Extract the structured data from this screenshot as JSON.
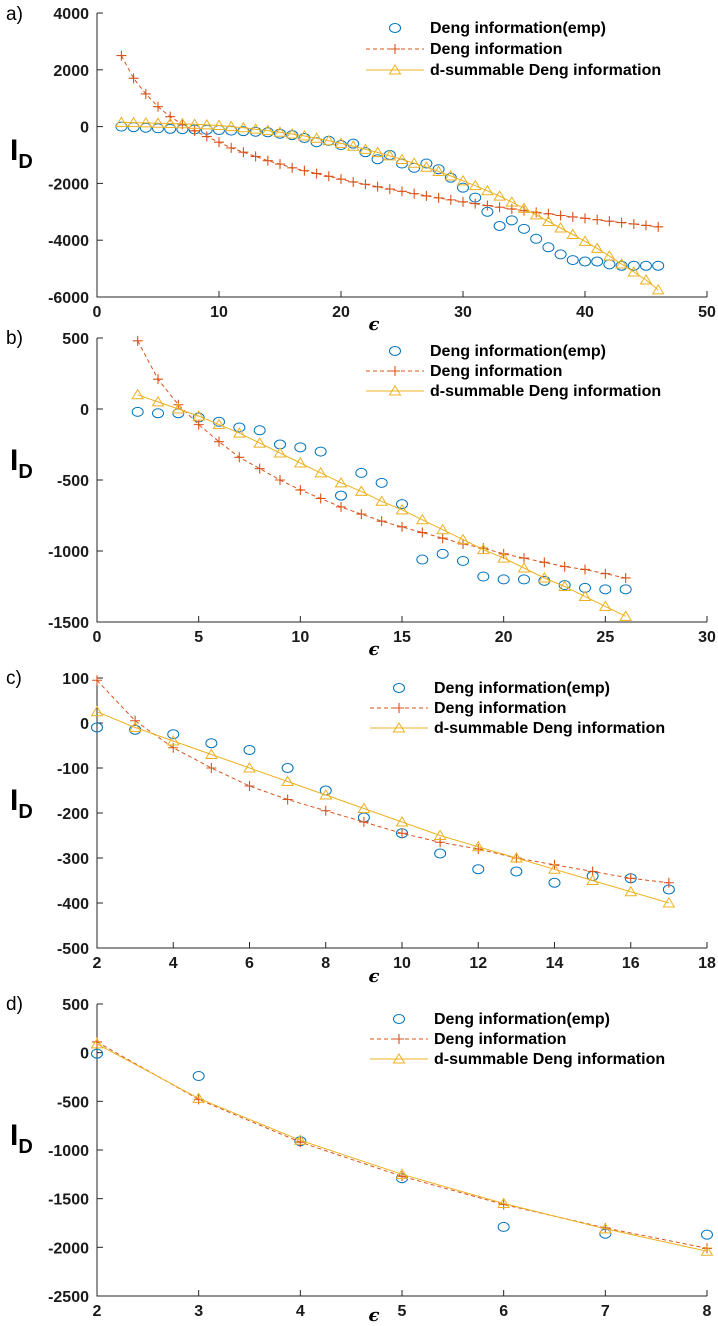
{
  "colors": {
    "emp": "#0072BD",
    "deng": "#D95319",
    "dsum": "#EDB120",
    "axis": "#262626"
  },
  "chart_data": [
    {
      "type": "scatter",
      "panel_label": "a)",
      "ylabel": "I",
      "ylabel_sub": "D",
      "xlabel": "ϵ",
      "xlim": [
        0,
        50
      ],
      "ylim": [
        -6000,
        4000
      ],
      "xticks": [
        0,
        10,
        20,
        30,
        40,
        50
      ],
      "yticks": [
        -6000,
        -4000,
        -2000,
        0,
        2000,
        4000
      ],
      "legend_position": "top-right",
      "series": [
        {
          "key": "emp",
          "name": "Deng information(emp)",
          "style": "circle",
          "x": [
            2,
            3,
            4,
            5,
            6,
            7,
            8,
            9,
            10,
            11,
            12,
            13,
            14,
            15,
            16,
            17,
            18,
            19,
            20,
            21,
            22,
            23,
            24,
            25,
            26,
            27,
            28,
            29,
            30,
            31,
            32,
            33,
            34,
            35,
            36,
            37,
            38,
            39,
            40,
            41,
            42,
            43,
            44,
            45,
            46
          ],
          "y": [
            0,
            -20,
            -40,
            -60,
            -80,
            -90,
            -100,
            -110,
            -120,
            -140,
            -160,
            -180,
            -200,
            -250,
            -300,
            -400,
            -550,
            -500,
            -650,
            -600,
            -900,
            -1150,
            -1000,
            -1300,
            -1450,
            -1300,
            -1500,
            -1800,
            -2150,
            -2500,
            -3000,
            -3500,
            -3300,
            -3600,
            -3950,
            -4250,
            -4500,
            -4700,
            -4750,
            -4750,
            -4850,
            -4900,
            -4900,
            -4900,
            -4900
          ]
        },
        {
          "key": "deng",
          "name": "Deng information",
          "style": "plus-dashed",
          "x": [
            2,
            3,
            4,
            5,
            6,
            7,
            8,
            9,
            10,
            11,
            12,
            13,
            14,
            15,
            16,
            17,
            18,
            19,
            20,
            21,
            22,
            23,
            24,
            25,
            26,
            27,
            28,
            29,
            30,
            31,
            32,
            33,
            34,
            35,
            36,
            37,
            38,
            39,
            40,
            41,
            42,
            43,
            44,
            45,
            46
          ],
          "y": [
            2500,
            1700,
            1150,
            700,
            350,
            80,
            -150,
            -350,
            -550,
            -750,
            -900,
            -1050,
            -1200,
            -1320,
            -1450,
            -1550,
            -1650,
            -1750,
            -1850,
            -1950,
            -2030,
            -2120,
            -2200,
            -2280,
            -2360,
            -2440,
            -2510,
            -2580,
            -2650,
            -2710,
            -2780,
            -2840,
            -2900,
            -2960,
            -3020,
            -3070,
            -3130,
            -3180,
            -3230,
            -3280,
            -3330,
            -3380,
            -3430,
            -3480,
            -3530
          ]
        },
        {
          "key": "dsum",
          "name": "d-summable Deng information",
          "style": "triangle-solid",
          "x": [
            2,
            3,
            4,
            5,
            6,
            7,
            8,
            9,
            10,
            11,
            12,
            13,
            14,
            15,
            16,
            17,
            18,
            19,
            20,
            21,
            22,
            23,
            24,
            25,
            26,
            27,
            28,
            29,
            30,
            31,
            32,
            33,
            34,
            35,
            36,
            37,
            38,
            39,
            40,
            41,
            42,
            43,
            44,
            45,
            46
          ],
          "y": [
            150,
            140,
            130,
            120,
            110,
            100,
            80,
            60,
            40,
            0,
            -40,
            -90,
            -140,
            -200,
            -260,
            -330,
            -410,
            -500,
            -590,
            -690,
            -800,
            -910,
            -1030,
            -1160,
            -1290,
            -1430,
            -1580,
            -1740,
            -1910,
            -2080,
            -2260,
            -2450,
            -2660,
            -2880,
            -3110,
            -3340,
            -3570,
            -3800,
            -4040,
            -4290,
            -4560,
            -4840,
            -5120,
            -5400,
            -5750
          ]
        }
      ]
    },
    {
      "type": "scatter",
      "panel_label": "b)",
      "ylabel": "I",
      "ylabel_sub": "D",
      "xlabel": "ϵ",
      "xlim": [
        0,
        30
      ],
      "ylim": [
        -1500,
        500
      ],
      "xticks": [
        0,
        5,
        10,
        15,
        20,
        25,
        30
      ],
      "yticks": [
        -1500,
        -1000,
        -500,
        0,
        500
      ],
      "legend_position": "top-right",
      "series": [
        {
          "key": "emp",
          "name": "Deng information(emp)",
          "style": "circle",
          "x": [
            2,
            3,
            4,
            5,
            6,
            7,
            8,
            9,
            10,
            11,
            12,
            13,
            14,
            15,
            16,
            17,
            18,
            19,
            20,
            21,
            22,
            23,
            24,
            25,
            26
          ],
          "y": [
            -20,
            -30,
            -30,
            -60,
            -90,
            -130,
            -150,
            -250,
            -270,
            -300,
            -610,
            -450,
            -520,
            -670,
            -1060,
            -1020,
            -1070,
            -1180,
            -1200,
            -1200,
            -1210,
            -1240,
            -1260,
            -1270,
            -1270
          ]
        },
        {
          "key": "deng",
          "name": "Deng information",
          "style": "plus-dashed",
          "x": [
            2,
            3,
            4,
            5,
            6,
            7,
            8,
            9,
            10,
            11,
            12,
            13,
            14,
            15,
            16,
            17,
            18,
            19,
            20,
            21,
            22,
            23,
            24,
            25,
            26
          ],
          "y": [
            480,
            210,
            30,
            -110,
            -230,
            -340,
            -420,
            -500,
            -570,
            -630,
            -690,
            -740,
            -790,
            -830,
            -870,
            -910,
            -950,
            -980,
            -1020,
            -1050,
            -1080,
            -1110,
            -1130,
            -1160,
            -1190
          ]
        },
        {
          "key": "dsum",
          "name": "d-summable Deng information",
          "style": "triangle-solid",
          "x": [
            2,
            3,
            4,
            5,
            6,
            7,
            8,
            9,
            10,
            11,
            12,
            13,
            14,
            15,
            16,
            17,
            18,
            19,
            20,
            21,
            22,
            23,
            24,
            25,
            26
          ],
          "y": [
            100,
            50,
            0,
            -50,
            -110,
            -170,
            -240,
            -310,
            -380,
            -450,
            -520,
            -580,
            -650,
            -710,
            -780,
            -850,
            -920,
            -990,
            -1050,
            -1120,
            -1190,
            -1250,
            -1320,
            -1390,
            -1460
          ]
        }
      ]
    },
    {
      "type": "scatter",
      "panel_label": "c)",
      "ylabel": "I",
      "ylabel_sub": "D",
      "xlabel": "ϵ",
      "xlim": [
        2,
        18
      ],
      "ylim": [
        -500,
        100
      ],
      "xticks": [
        2,
        4,
        6,
        8,
        10,
        12,
        14,
        16,
        18
      ],
      "yticks": [
        -500,
        -400,
        -300,
        -200,
        -100,
        0,
        100
      ],
      "legend_position": "top-right",
      "series": [
        {
          "key": "emp",
          "name": "Deng information(emp)",
          "style": "circle",
          "x": [
            2,
            3,
            4,
            5,
            6,
            7,
            8,
            9,
            10,
            11,
            12,
            13,
            14,
            15,
            16,
            17
          ],
          "y": [
            -10,
            -15,
            -25,
            -45,
            -60,
            -100,
            -150,
            -210,
            -245,
            -290,
            -325,
            -330,
            -355,
            -340,
            -345,
            -370
          ]
        },
        {
          "key": "deng",
          "name": "Deng information",
          "style": "plus-dashed",
          "x": [
            2,
            3,
            4,
            5,
            6,
            7,
            8,
            9,
            10,
            11,
            12,
            13,
            14,
            15,
            16,
            17
          ],
          "y": [
            95,
            5,
            -55,
            -100,
            -140,
            -170,
            -195,
            -220,
            -245,
            -265,
            -280,
            -300,
            -315,
            -330,
            -345,
            -355
          ]
        },
        {
          "key": "dsum",
          "name": "d-summable Deng information",
          "style": "triangle-solid",
          "x": [
            2,
            3,
            4,
            5,
            6,
            7,
            8,
            9,
            10,
            11,
            12,
            13,
            14,
            15,
            16,
            17
          ],
          "y": [
            25,
            -10,
            -40,
            -70,
            -100,
            -130,
            -160,
            -190,
            -220,
            -250,
            -275,
            -300,
            -325,
            -350,
            -375,
            -400
          ]
        }
      ]
    },
    {
      "type": "scatter",
      "panel_label": "d)",
      "ylabel": "I",
      "ylabel_sub": "D",
      "xlabel": "ϵ",
      "xlim": [
        2,
        8
      ],
      "ylim": [
        -2500,
        500
      ],
      "xticks": [
        2,
        3,
        4,
        5,
        6,
        7,
        8
      ],
      "yticks": [
        -2500,
        -2000,
        -1500,
        -1000,
        -500,
        0,
        500
      ],
      "legend_position": "top-right",
      "series": [
        {
          "key": "emp",
          "name": "Deng information(emp)",
          "style": "circle",
          "x": [
            2,
            3,
            4,
            5,
            6,
            7,
            8
          ],
          "y": [
            -10,
            -240,
            -910,
            -1290,
            -1790,
            -1860,
            -1870
          ]
        },
        {
          "key": "deng",
          "name": "Deng information",
          "style": "plus-dashed",
          "x": [
            2,
            3,
            4,
            5,
            6,
            7,
            8
          ],
          "y": [
            110,
            -480,
            -920,
            -1270,
            -1560,
            -1800,
            -2010
          ]
        },
        {
          "key": "dsum",
          "name": "d-summable Deng information",
          "style": "triangle-solid",
          "x": [
            2,
            3,
            4,
            5,
            6,
            7,
            8
          ],
          "y": [
            90,
            -470,
            -900,
            -1250,
            -1550,
            -1810,
            -2040
          ]
        }
      ]
    }
  ]
}
